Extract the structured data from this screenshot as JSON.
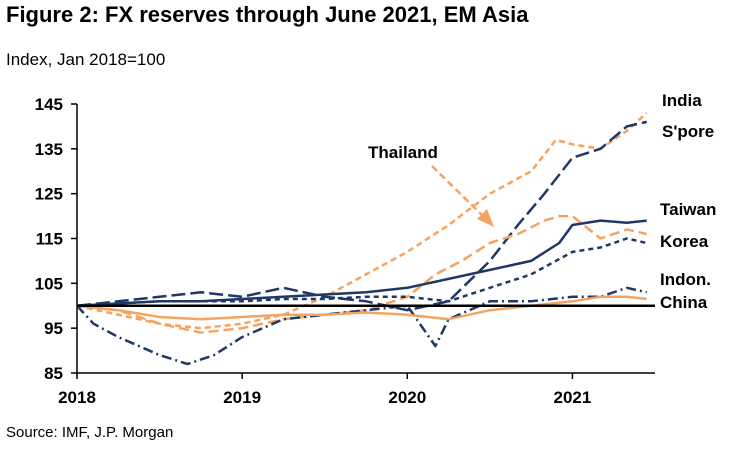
{
  "title": "Figure 2: FX reserves through June 2021, EM Asia",
  "subtitle": "Index, Jan 2018=100",
  "source": "Source: IMF, J.P. Morgan",
  "colors": {
    "navy": "#1f3864",
    "orange": "#f4a460",
    "axis": "#000000"
  },
  "chart_data": {
    "type": "line",
    "title": "Figure 2: FX reserves through June 2021, EM Asia",
    "ylabel": "Index, Jan 2018=100",
    "xlabel": "",
    "xlim": [
      2018.0,
      2021.5
    ],
    "ylim": [
      85,
      145
    ],
    "y_ticks": [
      85,
      95,
      105,
      115,
      125,
      135,
      145
    ],
    "x_ticks": [
      2018,
      2019,
      2020,
      2021
    ],
    "x_tick_labels": [
      "2018",
      "2019",
      "2020",
      "2021"
    ],
    "reference_line": 100,
    "annotations": [
      {
        "text": "Thailand",
        "series": "Thailand"
      }
    ],
    "series": [
      {
        "name": "India",
        "label": "India",
        "color": "#f4a460",
        "dash": "6,4",
        "width": 2.5,
        "x": [
          2018.0,
          2018.25,
          2018.5,
          2018.75,
          2019.0,
          2019.25,
          2019.5,
          2019.75,
          2020.0,
          2020.25,
          2020.5,
          2020.75,
          2020.9,
          2021.0,
          2021.17,
          2021.33,
          2021.45
        ],
        "values": [
          100,
          98,
          96,
          95,
          96,
          98,
          102,
          107,
          112,
          118,
          125,
          130,
          137,
          136,
          135,
          139,
          143
        ]
      },
      {
        "name": "Singapore",
        "label": "S'pore",
        "color": "#1f3864",
        "dash": "14,5",
        "width": 2.5,
        "x": [
          2018.0,
          2018.25,
          2018.5,
          2018.75,
          2019.0,
          2019.25,
          2019.5,
          2019.75,
          2020.0,
          2020.25,
          2020.5,
          2020.67,
          2020.83,
          2021.0,
          2021.17,
          2021.33,
          2021.45
        ],
        "values": [
          100,
          101,
          102,
          103,
          102,
          104,
          102,
          101,
          99,
          101,
          110,
          118,
          125,
          133,
          135,
          140,
          141
        ]
      },
      {
        "name": "Thailand",
        "label": "Thailand",
        "color": "#f4a460",
        "dash": "10,5",
        "width": 2.5,
        "x": [
          2018.0,
          2018.25,
          2018.5,
          2018.75,
          2019.0,
          2019.25,
          2019.5,
          2019.75,
          2020.0,
          2020.17,
          2020.33,
          2020.5,
          2020.67,
          2020.83,
          2020.92,
          2021.0,
          2021.17,
          2021.33,
          2021.45
        ],
        "values": [
          100,
          99,
          96,
          94,
          95,
          97,
          98,
          99,
          102,
          107,
          110,
          114,
          116,
          119,
          120,
          120,
          115,
          117,
          116
        ]
      },
      {
        "name": "Taiwan",
        "label": "Taiwan",
        "color": "#1f3864",
        "dash": "",
        "width": 2.5,
        "x": [
          2018.0,
          2018.25,
          2018.5,
          2018.75,
          2019.0,
          2019.25,
          2019.5,
          2019.75,
          2020.0,
          2020.25,
          2020.5,
          2020.75,
          2020.92,
          2021.0,
          2021.17,
          2021.33,
          2021.45
        ],
        "values": [
          100,
          100.5,
          101,
          101,
          101.5,
          102,
          102.5,
          103,
          104,
          106,
          108,
          110,
          114,
          118,
          119,
          118.5,
          119
        ]
      },
      {
        "name": "Korea",
        "label": "Korea",
        "color": "#1f3864",
        "dash": "5,4",
        "width": 2.5,
        "x": [
          2018.0,
          2018.25,
          2018.5,
          2018.75,
          2019.0,
          2019.25,
          2019.5,
          2019.75,
          2020.0,
          2020.25,
          2020.5,
          2020.75,
          2021.0,
          2021.17,
          2021.33,
          2021.45
        ],
        "values": [
          100,
          100.5,
          101,
          101,
          101,
          101.5,
          101.5,
          102,
          102,
          101,
          104,
          107,
          112,
          113,
          115,
          114
        ]
      },
      {
        "name": "Indonesia",
        "label": "Indon.",
        "color": "#1f3864",
        "dash": "10,4,2,4",
        "width": 2.5,
        "x": [
          2018.0,
          2018.1,
          2018.25,
          2018.5,
          2018.67,
          2018.83,
          2019.0,
          2019.25,
          2019.5,
          2019.75,
          2020.0,
          2020.17,
          2020.25,
          2020.5,
          2020.75,
          2021.0,
          2021.17,
          2021.33,
          2021.45
        ],
        "values": [
          100,
          96,
          93,
          89,
          87,
          89,
          93,
          97,
          98,
          99,
          100,
          91,
          97,
          101,
          101,
          102,
          102,
          104,
          103
        ]
      },
      {
        "name": "China",
        "label": "China",
        "color": "#f4a460",
        "dash": "",
        "width": 2.5,
        "x": [
          2018.0,
          2018.25,
          2018.5,
          2018.75,
          2019.0,
          2019.25,
          2019.5,
          2019.75,
          2020.0,
          2020.25,
          2020.5,
          2020.75,
          2021.0,
          2021.17,
          2021.33,
          2021.45
        ],
        "values": [
          100,
          99,
          97.5,
          97,
          97.5,
          98,
          98,
          98.5,
          98,
          97,
          99,
          100,
          101,
          102,
          102,
          101.5
        ]
      }
    ]
  }
}
